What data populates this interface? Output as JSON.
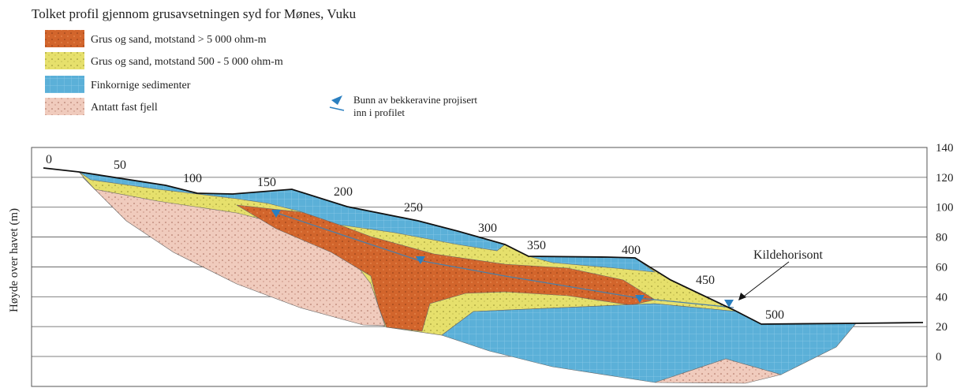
{
  "title": "Tolket profil gjennom grusavsetningen syd for Mønes, Vuku",
  "legend": [
    {
      "label": "Grus og sand, motstand > 5 000 ohm-m"
    },
    {
      "label": "Grus og sand, motstand 500 - 5 000 ohm-m"
    },
    {
      "label": "Finkornige sedimenter"
    },
    {
      "label": "Antatt fast fjell"
    }
  ],
  "marker_legend": [
    "Bunn av bekkeravine projisert",
    "inn i profilet"
  ],
  "y_axis": {
    "label": "Høyde over havet (m)",
    "ticks": [
      140,
      120,
      100,
      80,
      60,
      40,
      20,
      0
    ]
  },
  "distance_labels": [
    "0",
    "50",
    "100",
    "150",
    "200",
    "250",
    "300",
    "350",
    "400",
    "450",
    "500"
  ],
  "annotation": "Kildehorisont"
}
